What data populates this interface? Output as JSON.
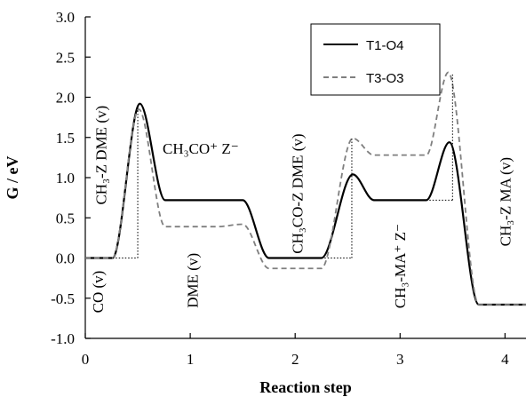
{
  "chart_data": {
    "type": "line",
    "title": "",
    "xlabel": "Reaction step",
    "ylabel": "G / eV",
    "xlim": [
      0,
      4.2
    ],
    "ylim": [
      -1.0,
      3.0
    ],
    "x_ticks": [
      0,
      1,
      2,
      3,
      4
    ],
    "x_tick_labels": [
      "0",
      "1",
      "2",
      "3",
      "4"
    ],
    "y_ticks": [
      -1.0,
      -0.5,
      0.0,
      0.5,
      1.0,
      1.5,
      2.0,
      2.5,
      3.0
    ],
    "y_tick_labels": [
      "-1.0",
      "-0.5",
      "0.0",
      "0.5",
      "1.0",
      "1.5",
      "2.0",
      "2.5",
      "3.0"
    ],
    "grid": false,
    "legend_position": "top-right",
    "series": [
      {
        "name": "T1-O4",
        "style": "solid",
        "color": "#000000",
        "x": [
          0,
          0.26,
          0.52,
          0.76,
          1.25,
          1.5,
          1.75,
          2.25,
          2.55,
          2.75,
          3.25,
          3.47,
          3.75,
          4.2
        ],
        "y": [
          0,
          0,
          1.92,
          0.72,
          0.72,
          0.72,
          0,
          0,
          1.04,
          0.72,
          0.72,
          1.44,
          -0.58,
          -0.58
        ]
      },
      {
        "name": "T3-O3",
        "style": "dashed",
        "color": "#7f7f7f",
        "x": [
          0,
          0.26,
          0.51,
          0.76,
          1.25,
          1.5,
          1.75,
          2.25,
          2.55,
          2.75,
          3.25,
          3.46,
          3.75,
          4.2
        ],
        "y": [
          0,
          0,
          1.85,
          0.39,
          0.39,
          0.42,
          -0.13,
          -0.13,
          1.49,
          1.28,
          1.28,
          2.31,
          -0.58,
          -0.58
        ]
      },
      {
        "name": "",
        "style": "dotted",
        "color": "#000000",
        "x": [
          0,
          0.5,
          0.5,
          2.54,
          2.54,
          3.5,
          3.5
        ],
        "y": [
          0,
          0,
          1.87,
          0,
          1.49,
          0.72,
          2.3
        ]
      }
    ],
    "annotations": [
      {
        "text": "CO (v)",
        "x": 0.17,
        "y": -0.42,
        "rotate": true
      },
      {
        "text": "CH₃-Z  DME (v)",
        "x": 0.2,
        "y": 1.28,
        "rotate": true
      },
      {
        "text": "CH₃CO⁺ Z⁻",
        "x": 1.1,
        "y": 1.3,
        "rotate": false
      },
      {
        "text": "DME (v)",
        "x": 1.07,
        "y": -0.28,
        "rotate": true
      },
      {
        "text": "CH₃CO-Z DME (v)",
        "x": 2.07,
        "y": 0.8,
        "rotate": true
      },
      {
        "text": "CH₃-MA⁺ Z⁻",
        "x": 3.05,
        "y": -0.1,
        "rotate": true
      },
      {
        "text": "CH₃-Z MA (v)",
        "x": 4.05,
        "y": 0.7,
        "rotate": true
      }
    ]
  }
}
